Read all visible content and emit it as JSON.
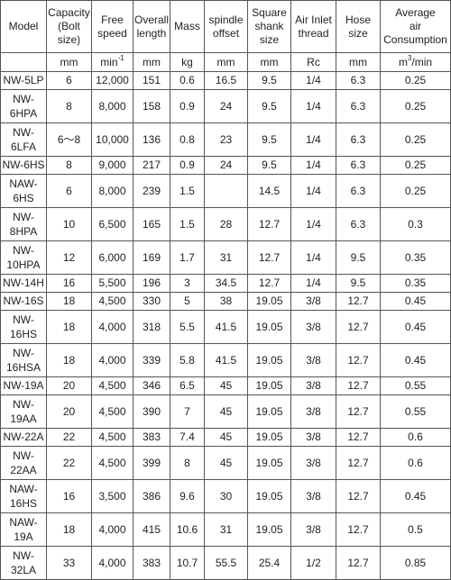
{
  "header": {
    "model": "Model",
    "capacity": [
      "Capacity",
      "(Bolt",
      "size)"
    ],
    "speed": [
      "Free",
      "speed"
    ],
    "length": [
      "Overall",
      "length"
    ],
    "mass": "Mass",
    "offset": [
      "spindle",
      "offset"
    ],
    "shank": [
      "Square",
      "shank",
      "size"
    ],
    "thread": [
      "Air Inlet",
      "thread"
    ],
    "hose": [
      "Hose",
      "size"
    ],
    "air": [
      "Average",
      "air",
      "Consumption"
    ]
  },
  "units": {
    "capacity": "mm",
    "speed_base": "min",
    "speed_exp": "-1",
    "length": "mm",
    "mass": "kg",
    "offset": "mm",
    "shank": "mm",
    "thread": "Rc",
    "hose": "mm",
    "air_base": "m",
    "air_exp": "3",
    "air_tail": "/min"
  },
  "rows": [
    {
      "model": [
        "NW-5LP"
      ],
      "capacity": "6",
      "speed": "12,000",
      "length": "151",
      "mass": "0.6",
      "offset": "16.5",
      "shank": "9.5",
      "thread": "1/4",
      "hose": "6.3",
      "air": "0.25"
    },
    {
      "model": [
        "NW-",
        "6HPA"
      ],
      "capacity": "8",
      "speed": "8,000",
      "length": "158",
      "mass": "0.9",
      "offset": "24",
      "shank": "9.5",
      "thread": "1/4",
      "hose": "6.3",
      "air": "0.25"
    },
    {
      "model": [
        "NW-",
        "6LFA"
      ],
      "capacity": "6～8",
      "speed": "10,000",
      "length": "136",
      "mass": "0.8",
      "offset": "23",
      "shank": "9.5",
      "thread": "1/4",
      "hose": "6.3",
      "air": "0.25"
    },
    {
      "model": [
        "NW-6HS"
      ],
      "capacity": "8",
      "speed": "9,000",
      "length": "217",
      "mass": "0.9",
      "offset": "24",
      "shank": "9.5",
      "thread": "1/4",
      "hose": "6.3",
      "air": "0.25"
    },
    {
      "model": [
        "NAW-",
        "6HS"
      ],
      "capacity": "6",
      "speed": "8,000",
      "length": "239",
      "mass": "1.5",
      "offset": "",
      "shank": "14.5",
      "thread": "1/4",
      "hose": "6.3",
      "air": "0.25"
    },
    {
      "model": [
        "NW-",
        "8HPA"
      ],
      "capacity": "10",
      "speed": "6,500",
      "length": "165",
      "mass": "1.5",
      "offset": "28",
      "shank": "12.7",
      "thread": "1/4",
      "hose": "6.3",
      "air": "0.3"
    },
    {
      "model": [
        "NW-",
        "10HPA"
      ],
      "capacity": "12",
      "speed": "6,000",
      "length": "169",
      "mass": "1.7",
      "offset": "31",
      "shank": "12.7",
      "thread": "1/4",
      "hose": "9.5",
      "air": "0.35"
    },
    {
      "model": [
        "NW-14H"
      ],
      "capacity": "16",
      "speed": "5,500",
      "length": "196",
      "mass": "3",
      "offset": "34.5",
      "shank": "12.7",
      "thread": "1/4",
      "hose": "9.5",
      "air": "0.35"
    },
    {
      "model": [
        "NW-16S"
      ],
      "capacity": "18",
      "speed": "4,500",
      "length": "330",
      "mass": "5",
      "offset": "38",
      "shank": "19.05",
      "thread": "3/8",
      "hose": "12.7",
      "air": "0.45"
    },
    {
      "model": [
        "NW-",
        "16HS"
      ],
      "capacity": "18",
      "speed": "4,000",
      "length": "318",
      "mass": "5.5",
      "offset": "41.5",
      "shank": "19.05",
      "thread": "3/8",
      "hose": "12.7",
      "air": "0.45"
    },
    {
      "model": [
        "NW-",
        "16HSA"
      ],
      "capacity": "18",
      "speed": "4,000",
      "length": "339",
      "mass": "5.8",
      "offset": "41.5",
      "shank": "19.05",
      "thread": "3/8",
      "hose": "12.7",
      "air": "0.45"
    },
    {
      "model": [
        "NW-19A"
      ],
      "capacity": "20",
      "speed": "4,500",
      "length": "346",
      "mass": "6.5",
      "offset": "45",
      "shank": "19.05",
      "thread": "3/8",
      "hose": "12.7",
      "air": "0.55"
    },
    {
      "model": [
        "NW-",
        "19AA"
      ],
      "capacity": "20",
      "speed": "4,500",
      "length": "390",
      "mass": "7",
      "offset": "45",
      "shank": "19.05",
      "thread": "3/8",
      "hose": "12.7",
      "air": "0.55"
    },
    {
      "model": [
        "NW-22A"
      ],
      "capacity": "22",
      "speed": "4,500",
      "length": "383",
      "mass": "7.4",
      "offset": "45",
      "shank": "19.05",
      "thread": "3/8",
      "hose": "12.7",
      "air": "0.6"
    },
    {
      "model": [
        "NW-",
        "22AA"
      ],
      "capacity": "22",
      "speed": "4,500",
      "length": "399",
      "mass": "8",
      "offset": "45",
      "shank": "19.05",
      "thread": "3/8",
      "hose": "12.7",
      "air": "0.6"
    },
    {
      "model": [
        "NAW-",
        "16HS"
      ],
      "capacity": "16",
      "speed": "3,500",
      "length": "386",
      "mass": "9.6",
      "offset": "30",
      "shank": "19.05",
      "thread": "3/8",
      "hose": "12.7",
      "air": "0.45"
    },
    {
      "model": [
        "NAW-",
        "19A"
      ],
      "capacity": "18",
      "speed": "4,000",
      "length": "415",
      "mass": "10.6",
      "offset": "31",
      "shank": "19.05",
      "thread": "3/8",
      "hose": "12.7",
      "air": "0.5"
    },
    {
      "model": [
        "NW-",
        "32LA"
      ],
      "capacity": "33",
      "speed": "4,000",
      "length": "383",
      "mass": "10.7",
      "offset": "55.5",
      "shank": "25.4",
      "thread": "1/2",
      "hose": "12.7",
      "air": "0.85"
    }
  ]
}
